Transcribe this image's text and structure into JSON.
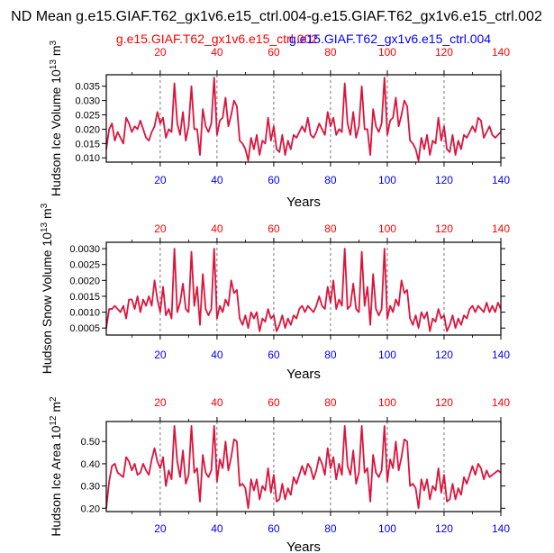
{
  "title": "ND Mean g.e15.GIAF.T62_gx1v6.e15_ctrl.004-g.e15.GIAF.T62_gx1v6.e15_ctrl.002",
  "legend": {
    "red": "g.e15.GIAF.T62_gx1v6.e15_ctrl.002",
    "blue": "g.e15.GIAF.T62_gx1v6.e15_ctrl.004"
  },
  "colors": {
    "red": "#ff0000",
    "blue": "#0000ff",
    "overlay": "#dc143c",
    "axis": "#000000",
    "grid": "#555555"
  },
  "chart_data": [
    {
      "type": "line",
      "title": "",
      "ylabel": "Hudson Ice Volume 10^13 m^3",
      "ylabel_parts": {
        "base": "Hudson Ice Volume 10",
        "exp1": "13",
        "mid": " m",
        "exp2": "3"
      },
      "xlabel": "Years",
      "xlim": [
        1,
        140
      ],
      "ylim": [
        0.0085,
        0.039
      ],
      "yticks": [
        0.01,
        0.015,
        0.02,
        0.025,
        0.03,
        0.035
      ],
      "ytick_labels": [
        "0.010",
        "0.015",
        "0.020",
        "0.025",
        "0.030",
        "0.035"
      ],
      "xticks": [
        20,
        40,
        60,
        80,
        100,
        120,
        140
      ],
      "xtick_labels": [
        "20",
        "40",
        "60",
        "80",
        "100",
        "120",
        "140"
      ],
      "vgrid": [
        20,
        40,
        60,
        80,
        100,
        120
      ],
      "series": [
        {
          "name": "g.e15.GIAF.T62_gx1v6.e15_ctrl.002",
          "x_start": 1,
          "values": [
            0.013,
            0.02,
            0.022,
            0.016,
            0.019,
            0.017,
            0.015,
            0.024,
            0.022,
            0.019,
            0.021,
            0.02,
            0.023,
            0.02,
            0.017,
            0.016,
            0.019,
            0.021,
            0.026,
            0.022,
            0.024,
            0.017,
            0.02,
            0.019,
            0.036,
            0.022,
            0.018,
            0.026,
            0.016,
            0.021,
            0.035,
            0.02,
            0.02,
            0.011,
            0.027,
            0.021,
            0.019,
            0.022,
            0.038,
            0.018,
            0.023,
            0.024,
            0.031,
            0.021,
            0.025,
            0.03,
            0.028,
            0.016,
            0.015,
            0.013,
            0.009,
            0.017,
            0.013,
            0.018,
            0.011,
            0.016,
            0.015,
            0.024,
            0.016,
            0.021,
            0.013,
            0.012,
            0.018,
            0.011,
            0.016,
            0.013,
            0.018,
            0.017,
            0.019,
            0.021,
            0.019,
            0.024,
            0.018,
            0.017,
            0.019,
            0.022,
            0.02,
            0.018,
            0.026,
            0.021,
            0.024,
            0.018,
            0.02,
            0.019,
            0.036,
            0.022,
            0.018,
            0.026,
            0.017,
            0.021,
            0.035,
            0.02,
            0.02,
            0.011,
            0.027,
            0.021,
            0.019,
            0.022,
            0.038,
            0.018,
            0.023,
            0.024,
            0.031,
            0.021,
            0.025,
            0.03,
            0.028,
            0.016,
            0.015,
            0.013,
            0.009,
            0.017,
            0.013,
            0.018,
            0.011,
            0.016,
            0.015,
            0.024,
            0.016,
            0.021,
            0.013,
            0.012,
            0.018,
            0.011,
            0.016,
            0.013,
            0.018,
            0.017,
            0.019,
            0.021,
            0.019,
            0.024,
            0.023,
            0.017,
            0.019,
            0.021,
            0.018,
            0.017,
            0.018,
            0.019
          ]
        }
      ]
    },
    {
      "type": "line",
      "title": "",
      "ylabel": "Hudson Snow Volume 10^13 m^3",
      "ylabel_parts": {
        "base": "Hudson Snow Volume 10",
        "exp1": "13",
        "mid": " m",
        "exp2": "3"
      },
      "xlabel": "Years",
      "xlim": [
        1,
        140
      ],
      "ylim": [
        0.00028,
        0.0032
      ],
      "yticks": [
        0.0005,
        0.001,
        0.0015,
        0.002,
        0.0025,
        0.003
      ],
      "ytick_labels": [
        "0.0005",
        "0.0010",
        "0.0015",
        "0.0020",
        "0.0025",
        "0.0030"
      ],
      "xticks": [
        20,
        40,
        60,
        80,
        100,
        120,
        140
      ],
      "xtick_labels": [
        "20",
        "40",
        "60",
        "80",
        "100",
        "120",
        "140"
      ],
      "vgrid": [
        20,
        40,
        60,
        80,
        100,
        120
      ],
      "series": [
        {
          "name": "g.e15.GIAF.T62_gx1v6.e15_ctrl.002",
          "x_start": 1,
          "values": [
            0.0005,
            0.0011,
            0.0011,
            0.0012,
            0.0011,
            0.001,
            0.0012,
            0.0008,
            0.0014,
            0.0014,
            0.0011,
            0.0015,
            0.001,
            0.0014,
            0.0012,
            0.0015,
            0.0012,
            0.002,
            0.0014,
            0.001,
            0.0018,
            0.0009,
            0.0011,
            0.0008,
            0.003,
            0.001,
            0.0013,
            0.0019,
            0.0011,
            0.001,
            0.0029,
            0.0012,
            0.0018,
            0.0006,
            0.0022,
            0.0011,
            0.0009,
            0.0011,
            0.003,
            0.0008,
            0.0012,
            0.001,
            0.0014,
            0.0012,
            0.002,
            0.0016,
            0.0017,
            0.0008,
            0.0006,
            0.0009,
            0.0005,
            0.001,
            0.0008,
            0.001,
            0.0004,
            0.0008,
            0.0007,
            0.0011,
            0.0008,
            0.0009,
            0.0004,
            0.0006,
            0.0009,
            0.0005,
            0.0008,
            0.0006,
            0.0009,
            0.0008,
            0.0011,
            0.0012,
            0.001,
            0.0012,
            0.0011,
            0.001,
            0.0012,
            0.0015,
            0.0012,
            0.0011,
            0.0018,
            0.0013,
            0.002,
            0.0011,
            0.0014,
            0.0012,
            0.003,
            0.0011,
            0.0012,
            0.0019,
            0.0011,
            0.001,
            0.0029,
            0.0012,
            0.0018,
            0.0006,
            0.0022,
            0.0011,
            0.0009,
            0.0011,
            0.003,
            0.0008,
            0.0012,
            0.001,
            0.0014,
            0.0012,
            0.002,
            0.0016,
            0.0017,
            0.0008,
            0.0006,
            0.0009,
            0.0005,
            0.001,
            0.0008,
            0.001,
            0.0004,
            0.0008,
            0.0007,
            0.0011,
            0.0008,
            0.0009,
            0.0004,
            0.0006,
            0.0009,
            0.0005,
            0.0008,
            0.0006,
            0.0009,
            0.0008,
            0.0011,
            0.0012,
            0.001,
            0.0012,
            0.0011,
            0.001,
            0.0013,
            0.001,
            0.0012,
            0.001,
            0.0013,
            0.0011
          ]
        }
      ]
    },
    {
      "type": "line",
      "title": "",
      "ylabel": "Hudson Ice Area 10^12 m^2",
      "ylabel_parts": {
        "base": "Hudson Ice Area 10",
        "exp1": "12",
        "mid": " m",
        "exp2": "2"
      },
      "xlabel": "Years",
      "xlim": [
        1,
        140
      ],
      "ylim": [
        0.185,
        0.59
      ],
      "yticks": [
        0.2,
        0.3,
        0.4,
        0.5
      ],
      "ytick_labels": [
        "0.20",
        "0.30",
        "0.40",
        "0.50"
      ],
      "xticks": [
        20,
        40,
        60,
        80,
        100,
        120,
        140
      ],
      "xtick_labels": [
        "20",
        "40",
        "60",
        "80",
        "100",
        "120",
        "140"
      ],
      "vgrid": [
        20,
        40,
        60,
        80,
        100,
        120
      ],
      "series": [
        {
          "name": "g.e15.GIAF.T62_gx1v6.e15_ctrl.002",
          "x_start": 1,
          "values": [
            0.2,
            0.32,
            0.39,
            0.4,
            0.36,
            0.35,
            0.34,
            0.43,
            0.41,
            0.37,
            0.4,
            0.35,
            0.36,
            0.4,
            0.37,
            0.35,
            0.42,
            0.47,
            0.41,
            0.38,
            0.43,
            0.3,
            0.37,
            0.33,
            0.57,
            0.41,
            0.34,
            0.46,
            0.31,
            0.35,
            0.57,
            0.36,
            0.38,
            0.23,
            0.44,
            0.36,
            0.34,
            0.37,
            0.57,
            0.32,
            0.42,
            0.38,
            0.5,
            0.37,
            0.43,
            0.51,
            0.5,
            0.3,
            0.31,
            0.29,
            0.2,
            0.33,
            0.28,
            0.33,
            0.24,
            0.3,
            0.28,
            0.38,
            0.27,
            0.35,
            0.23,
            0.24,
            0.31,
            0.24,
            0.29,
            0.26,
            0.34,
            0.31,
            0.35,
            0.39,
            0.35,
            0.4,
            0.38,
            0.33,
            0.37,
            0.43,
            0.4,
            0.35,
            0.47,
            0.38,
            0.43,
            0.33,
            0.4,
            0.35,
            0.57,
            0.39,
            0.35,
            0.46,
            0.31,
            0.36,
            0.57,
            0.36,
            0.38,
            0.23,
            0.44,
            0.36,
            0.34,
            0.37,
            0.57,
            0.32,
            0.42,
            0.38,
            0.5,
            0.37,
            0.43,
            0.51,
            0.5,
            0.3,
            0.31,
            0.29,
            0.2,
            0.33,
            0.28,
            0.33,
            0.24,
            0.3,
            0.28,
            0.38,
            0.27,
            0.35,
            0.23,
            0.24,
            0.31,
            0.24,
            0.29,
            0.26,
            0.34,
            0.31,
            0.35,
            0.39,
            0.35,
            0.4,
            0.38,
            0.33,
            0.37,
            0.34,
            0.35,
            0.36,
            0.37,
            0.36
          ]
        }
      ]
    }
  ]
}
